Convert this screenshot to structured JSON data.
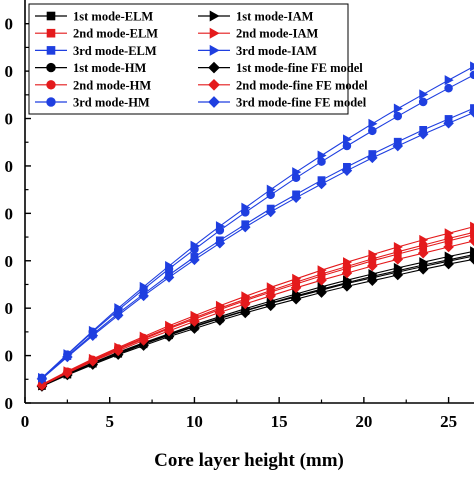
{
  "chart_data": {
    "type": "line",
    "title": "",
    "xlabel": "Core layer height (mm)",
    "ylabel": "",
    "x_ticks": [
      "0",
      "5",
      "10",
      "15",
      "20",
      "25"
    ],
    "y_ticks": [
      "0",
      "0",
      "0",
      "0",
      "0",
      "0",
      "0",
      "0",
      "0"
    ],
    "xlim": [
      0,
      26.5
    ],
    "ylim": [
      0,
      8.5
    ],
    "x": [
      1,
      2.5,
      4,
      5.5,
      7,
      8.5,
      10,
      11.5,
      13,
      14.5,
      16,
      17.5,
      19,
      20.5,
      22,
      23.5,
      25,
      26.5
    ],
    "legend": {
      "position": "top-left",
      "columns": 2,
      "frame": true
    },
    "series": [
      {
        "name": "1st mode-ELM",
        "color": "#000000",
        "marker": "square",
        "fill": "filled",
        "values": [
          0.36,
          0.6,
          0.83,
          1.04,
          1.24,
          1.43,
          1.61,
          1.78,
          1.94,
          2.1,
          2.24,
          2.38,
          2.52,
          2.64,
          2.76,
          2.88,
          2.99,
          3.1
        ]
      },
      {
        "name": "1st mode-IAM",
        "color": "#000000",
        "marker": "triangle-right",
        "fill": "filled",
        "values": [
          0.37,
          0.62,
          0.85,
          1.07,
          1.27,
          1.46,
          1.65,
          1.82,
          1.99,
          2.15,
          2.3,
          2.45,
          2.59,
          2.72,
          2.85,
          2.97,
          3.09,
          3.2
        ]
      },
      {
        "name": "2nd mode-ELM",
        "color": "#e41a1c",
        "marker": "square",
        "fill": "filled",
        "values": [
          0.38,
          0.65,
          0.89,
          1.13,
          1.35,
          1.57,
          1.77,
          1.97,
          2.16,
          2.34,
          2.51,
          2.68,
          2.84,
          3.0,
          3.14,
          3.28,
          3.42,
          3.55
        ]
      },
      {
        "name": "2nd mode-IAM",
        "color": "#e41a1c",
        "marker": "triangle-right",
        "fill": "filled",
        "values": [
          0.39,
          0.67,
          0.93,
          1.17,
          1.4,
          1.63,
          1.84,
          2.05,
          2.25,
          2.44,
          2.62,
          2.8,
          2.97,
          3.13,
          3.29,
          3.44,
          3.58,
          3.72
        ]
      },
      {
        "name": "3rd mode-ELM",
        "color": "#1f3fe0",
        "marker": "square",
        "fill": "filled",
        "values": [
          0.52,
          0.99,
          1.45,
          1.89,
          2.3,
          2.7,
          3.08,
          3.43,
          3.77,
          4.1,
          4.4,
          4.7,
          4.98,
          5.25,
          5.51,
          5.76,
          5.99,
          6.22
        ]
      },
      {
        "name": "3rd mode-IAM",
        "color": "#1f3fe0",
        "marker": "triangle-right",
        "fill": "filled",
        "values": [
          0.53,
          1.03,
          1.52,
          2.0,
          2.45,
          2.89,
          3.32,
          3.73,
          4.12,
          4.5,
          4.87,
          5.22,
          5.56,
          5.89,
          6.21,
          6.51,
          6.81,
          7.1
        ]
      },
      {
        "name": "1st mode-HM",
        "color": "#000000",
        "marker": "circle",
        "fill": "filled",
        "values": [
          0.36,
          0.61,
          0.84,
          1.05,
          1.25,
          1.44,
          1.62,
          1.79,
          1.95,
          2.11,
          2.26,
          2.4,
          2.54,
          2.67,
          2.79,
          2.91,
          3.02,
          3.13
        ]
      },
      {
        "name": "1st mode-fine FE model",
        "color": "#000000",
        "marker": "diamond",
        "fill": "filled",
        "values": [
          0.35,
          0.59,
          0.81,
          1.02,
          1.21,
          1.4,
          1.57,
          1.74,
          1.9,
          2.05,
          2.19,
          2.33,
          2.46,
          2.58,
          2.7,
          2.82,
          2.93,
          3.03
        ]
      },
      {
        "name": "2nd mode-HM",
        "color": "#e41a1c",
        "marker": "circle",
        "fill": "filled",
        "values": [
          0.38,
          0.66,
          0.91,
          1.15,
          1.37,
          1.59,
          1.8,
          2.0,
          2.19,
          2.37,
          2.55,
          2.72,
          2.88,
          3.04,
          3.19,
          3.33,
          3.47,
          3.6
        ]
      },
      {
        "name": "2nd mode-fine FE model",
        "color": "#e41a1c",
        "marker": "diamond",
        "fill": "filled",
        "values": [
          0.37,
          0.63,
          0.88,
          1.1,
          1.32,
          1.52,
          1.72,
          1.91,
          2.09,
          2.26,
          2.43,
          2.59,
          2.74,
          2.89,
          3.03,
          3.16,
          3.29,
          3.42
        ]
      },
      {
        "name": "3rd mode-HM",
        "color": "#1f3fe0",
        "marker": "circle",
        "fill": "filled",
        "values": [
          0.53,
          1.02,
          1.5,
          1.96,
          2.4,
          2.83,
          3.24,
          3.64,
          4.02,
          4.39,
          4.75,
          5.09,
          5.42,
          5.74,
          6.05,
          6.35,
          6.64,
          6.92
        ]
      },
      {
        "name": "3rd mode-fine FE model",
        "color": "#1f3fe0",
        "marker": "diamond",
        "fill": "filled",
        "values": [
          0.51,
          0.97,
          1.42,
          1.85,
          2.26,
          2.65,
          3.02,
          3.37,
          3.71,
          4.03,
          4.33,
          4.62,
          4.9,
          5.17,
          5.42,
          5.67,
          5.9,
          6.13
        ]
      }
    ]
  }
}
